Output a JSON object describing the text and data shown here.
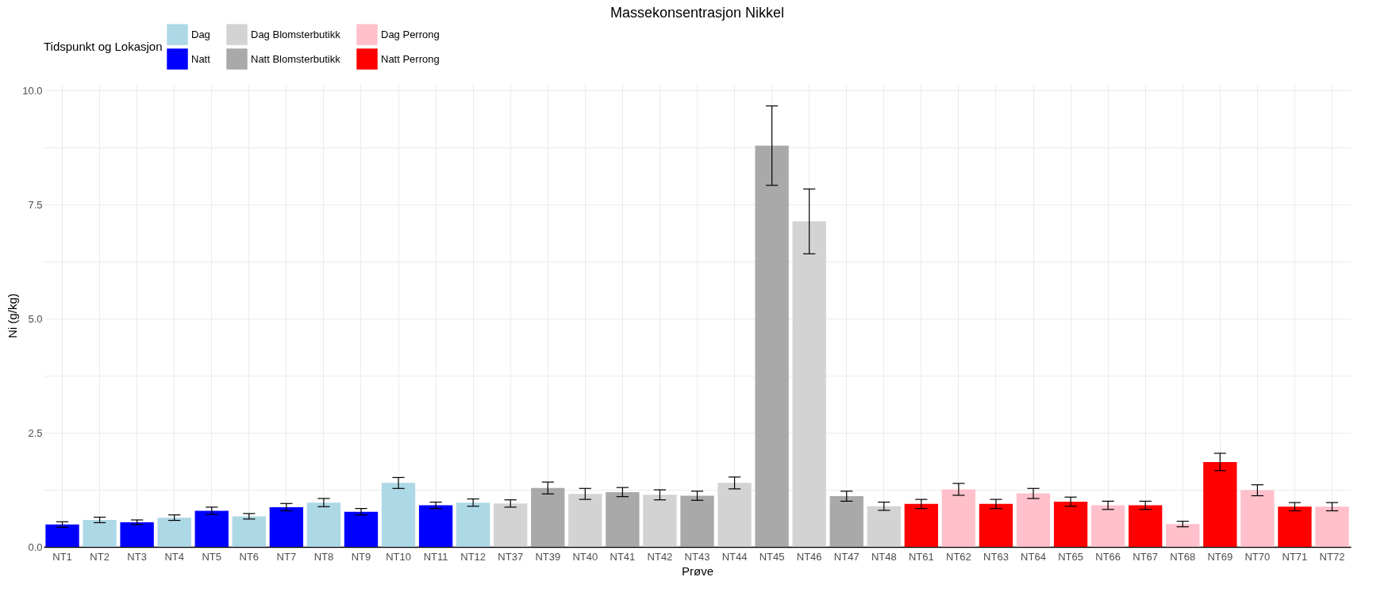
{
  "chart_data": {
    "type": "bar",
    "title": "Massekonsentrasjon Nikkel",
    "xlabel": "Prøve",
    "ylabel": "Ni (g/kg)",
    "legend_title": "Tidspunkt og Lokasjon",
    "legend": "top",
    "grid": true,
    "categories": [
      "NT1",
      "NT2",
      "NT3",
      "NT4",
      "NT5",
      "NT6",
      "NT7",
      "NT8",
      "NT9",
      "NT10",
      "NT11",
      "NT12",
      "NT37",
      "NT39",
      "NT40",
      "NT41",
      "NT42",
      "NT43",
      "NT44",
      "NT45",
      "NT46",
      "NT47",
      "NT48",
      "NT61",
      "NT62",
      "NT63",
      "NT64",
      "NT65",
      "NT66",
      "NT67",
      "NT68",
      "NT69",
      "NT70",
      "NT71",
      "NT72"
    ],
    "ylim": [
      0,
      10.14
    ],
    "yticks": [
      {
        "value": 0,
        "label": "0.0"
      },
      {
        "value": 1.25,
        "label": null
      },
      {
        "value": 2.5,
        "label": "2.5"
      },
      {
        "value": 3.75,
        "label": null
      },
      {
        "value": 5,
        "label": "5.0"
      },
      {
        "value": 6.25,
        "label": null
      },
      {
        "value": 7.5,
        "label": "7.5"
      },
      {
        "value": 8.75,
        "label": null
      },
      {
        "value": 10,
        "label": "10.0"
      }
    ],
    "series": [
      {
        "name": "Dag",
        "color": "#add8e6",
        "values": [
          null,
          0.59,
          null,
          0.64,
          null,
          0.67,
          null,
          0.97,
          null,
          1.4,
          null,
          0.97,
          null,
          null,
          null,
          null,
          null,
          null,
          null,
          null,
          null,
          null,
          null,
          null,
          null,
          null,
          null,
          null,
          null,
          null,
          null,
          null,
          null,
          null,
          null
        ],
        "errors": [
          null,
          0.06,
          null,
          0.06,
          null,
          0.06,
          null,
          0.09,
          null,
          0.12,
          null,
          0.08,
          null,
          null,
          null,
          null,
          null,
          null,
          null,
          null,
          null,
          null,
          null,
          null,
          null,
          null,
          null,
          null,
          null,
          null,
          null,
          null,
          null,
          null,
          null
        ]
      },
      {
        "name": "Dag Blomsterbutikk",
        "color": "#d3d3d3",
        "values": [
          null,
          null,
          null,
          null,
          null,
          null,
          null,
          null,
          null,
          null,
          null,
          null,
          0.95,
          null,
          1.16,
          null,
          1.14,
          null,
          1.4,
          null,
          7.13,
          null,
          0.89,
          null,
          null,
          null,
          null,
          null,
          null,
          null,
          null,
          null,
          null,
          null,
          null
        ],
        "errors": [
          null,
          null,
          null,
          null,
          null,
          null,
          null,
          null,
          null,
          null,
          null,
          null,
          0.08,
          null,
          0.12,
          null,
          0.11,
          null,
          0.13,
          null,
          0.71,
          null,
          0.09,
          null,
          null,
          null,
          null,
          null,
          null,
          null,
          null,
          null,
          null,
          null,
          null
        ]
      },
      {
        "name": "Dag Perrong",
        "color": "#ffc0cb",
        "values": [
          null,
          null,
          null,
          null,
          null,
          null,
          null,
          null,
          null,
          null,
          null,
          null,
          null,
          null,
          null,
          null,
          null,
          null,
          null,
          null,
          null,
          null,
          null,
          null,
          1.26,
          null,
          1.17,
          null,
          0.91,
          null,
          0.5,
          null,
          1.24,
          null,
          0.88
        ],
        "errors": [
          null,
          null,
          null,
          null,
          null,
          null,
          null,
          null,
          null,
          null,
          null,
          null,
          null,
          null,
          null,
          null,
          null,
          null,
          null,
          null,
          null,
          null,
          null,
          null,
          0.13,
          null,
          0.11,
          null,
          0.09,
          null,
          0.06,
          null,
          0.12,
          null,
          0.09
        ]
      },
      {
        "name": "Natt",
        "color": "#0000ff",
        "values": [
          0.49,
          null,
          0.54,
          null,
          0.79,
          null,
          0.87,
          null,
          0.77,
          null,
          0.91,
          null,
          null,
          null,
          null,
          null,
          null,
          null,
          null,
          null,
          null,
          null,
          null,
          null,
          null,
          null,
          null,
          null,
          null,
          null,
          null,
          null,
          null,
          null,
          null
        ],
        "errors": [
          0.06,
          null,
          0.05,
          null,
          0.08,
          null,
          0.08,
          null,
          0.07,
          null,
          0.07,
          null,
          null,
          null,
          null,
          null,
          null,
          null,
          null,
          null,
          null,
          null,
          null,
          null,
          null,
          null,
          null,
          null,
          null,
          null,
          null,
          null,
          null,
          null,
          null
        ]
      },
      {
        "name": "Natt Blomsterbutikk",
        "color": "#a9a9a9",
        "values": [
          null,
          null,
          null,
          null,
          null,
          null,
          null,
          null,
          null,
          null,
          null,
          null,
          null,
          1.29,
          null,
          1.2,
          null,
          1.12,
          null,
          8.79,
          null,
          1.11,
          null,
          null,
          null,
          null,
          null,
          null,
          null,
          null,
          null,
          null,
          null,
          null,
          null
        ],
        "errors": [
          null,
          null,
          null,
          null,
          null,
          null,
          null,
          null,
          null,
          null,
          null,
          null,
          null,
          0.13,
          null,
          0.1,
          null,
          0.1,
          null,
          0.87,
          null,
          0.11,
          null,
          null,
          null,
          null,
          null,
          null,
          null,
          null,
          null,
          null,
          null,
          null,
          null
        ]
      },
      {
        "name": "Natt Perrong",
        "color": "#ff0000",
        "values": [
          null,
          null,
          null,
          null,
          null,
          null,
          null,
          null,
          null,
          null,
          null,
          null,
          null,
          null,
          null,
          null,
          null,
          null,
          null,
          null,
          null,
          null,
          null,
          0.94,
          null,
          0.94,
          null,
          0.99,
          null,
          0.91,
          null,
          1.86,
          null,
          0.88,
          null
        ],
        "errors": [
          null,
          null,
          null,
          null,
          null,
          null,
          null,
          null,
          null,
          null,
          null,
          null,
          null,
          null,
          null,
          null,
          null,
          null,
          null,
          null,
          null,
          null,
          null,
          0.1,
          null,
          0.1,
          null,
          0.1,
          null,
          0.09,
          null,
          0.19,
          null,
          0.09,
          null
        ]
      }
    ]
  }
}
